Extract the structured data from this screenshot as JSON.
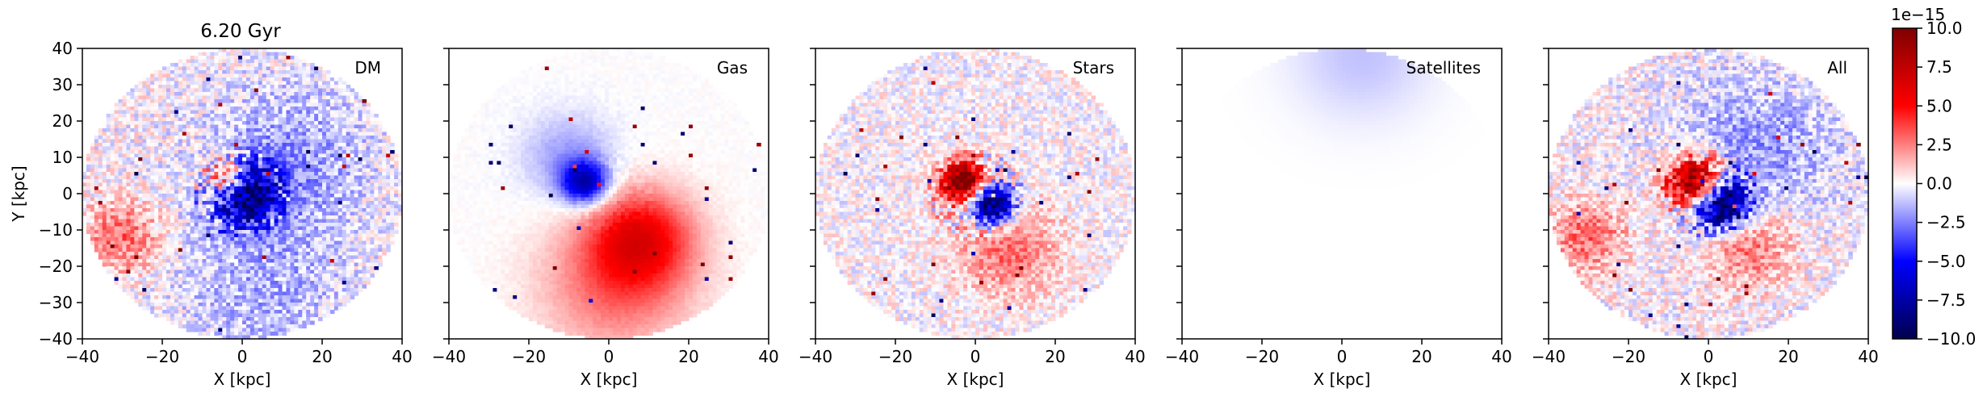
{
  "chart_data": {
    "type": "heatmap",
    "title": "6.20 Gyr",
    "xlabel": "X [kpc]",
    "ylabel": "Y [kpc]",
    "xlim": [
      -40,
      40
    ],
    "ylim": [
      -40,
      40
    ],
    "xticks": [
      "−40",
      "−20",
      "0",
      "20",
      "40"
    ],
    "yticks": [
      "40",
      "30",
      "20",
      "10",
      "0",
      "−10",
      "−20",
      "−30",
      "−40"
    ],
    "grid": false,
    "panels": [
      {
        "label": "DM",
        "features": [
          {
            "x": 0,
            "y": 0,
            "sigma": 6,
            "amp": -9
          },
          {
            "x": -4,
            "y": 4,
            "sigma": 4,
            "amp": 8
          },
          {
            "x": 12,
            "y": 10,
            "sigma": 14,
            "amp": -2
          },
          {
            "x": -30,
            "y": -12,
            "sigma": 7,
            "amp": 3
          },
          {
            "x": 5,
            "y": -25,
            "sigma": 15,
            "amp": -1.5
          }
        ],
        "noise": 3
      },
      {
        "label": "Gas",
        "features": [
          {
            "x": 8,
            "y": -12,
            "sigma": 9,
            "amp": 5
          },
          {
            "x": -6,
            "y": 3,
            "sigma": 4,
            "amp": -7
          },
          {
            "x": 2,
            "y": -25,
            "sigma": 13,
            "amp": 3
          },
          {
            "x": -10,
            "y": 10,
            "sigma": 8,
            "amp": -2
          }
        ],
        "noise": 0.4
      },
      {
        "label": "Stars",
        "features": [
          {
            "x": -3,
            "y": 3,
            "sigma": 4,
            "amp": 11
          },
          {
            "x": 4,
            "y": -3,
            "sigma": 4,
            "amp": -11
          },
          {
            "x": 8,
            "y": -15,
            "sigma": 9,
            "amp": 3
          }
        ],
        "noise": 2.5
      },
      {
        "label": "Satellites",
        "features": [
          {
            "x": 5,
            "y": 38,
            "sigma": 12,
            "amp": -1.2
          }
        ],
        "noise": 0
      },
      {
        "label": "All",
        "features": [
          {
            "x": -3,
            "y": 3,
            "sigma": 5,
            "amp": 11
          },
          {
            "x": 3,
            "y": -3,
            "sigma": 5,
            "amp": -11
          },
          {
            "x": 10,
            "y": -14,
            "sigma": 8,
            "amp": 3
          },
          {
            "x": -30,
            "y": -12,
            "sigma": 7,
            "amp": 3
          },
          {
            "x": 12,
            "y": 12,
            "sigma": 14,
            "amp": -2
          }
        ],
        "noise": 3
      }
    ],
    "colorbar": {
      "cmap": "seismic",
      "vmin": -10.0,
      "vmax": 10.0,
      "ticks": [
        "10.0",
        "7.5",
        "5.0",
        "2.5",
        "0.0",
        "−2.5",
        "−5.0",
        "−7.5",
        "−10.0"
      ],
      "scale_label": "1e−15"
    }
  }
}
